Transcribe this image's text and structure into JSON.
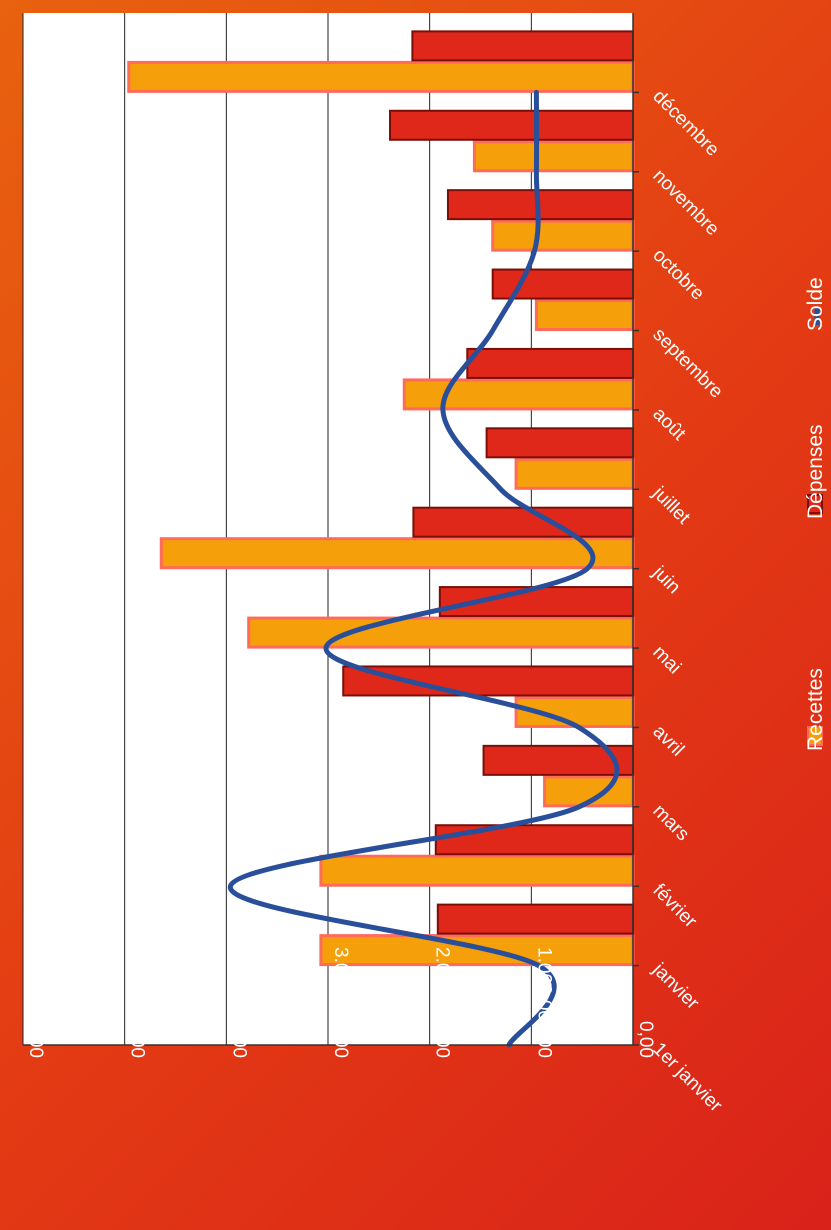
{
  "chart_data": {
    "type": "bar",
    "categories": [
      "1er janvier",
      "janvier",
      "février",
      "mars",
      "avril",
      "mai",
      "juin",
      "juillet",
      "août",
      "septembre",
      "octobre",
      "novembre",
      "décembre"
    ],
    "series": [
      {
        "name": "Recettes",
        "kind": "bar",
        "color": "#f5a00a",
        "border": "#ff6a5a",
        "values": [
          null,
          3070000,
          3070000,
          870000,
          1150000,
          3780000,
          4640000,
          1150000,
          2250000,
          950000,
          1380000,
          1560000,
          4960000
        ]
      },
      {
        "name": "Dépenses",
        "kind": "bar",
        "color": "#e0281a",
        "border": "#7a0e08",
        "values": [
          null,
          1920000,
          1940000,
          1470000,
          2850000,
          1900000,
          2160000,
          1440000,
          1630000,
          1380000,
          1820000,
          2390000,
          2170000
        ]
      },
      {
        "name": "Solde",
        "kind": "line",
        "smooth": true,
        "color": "#2a4f9a",
        "values": [
          1220000,
          930000,
          3960000,
          530000,
          530000,
          3020000,
          450000,
          1300000,
          1870000,
          1380000,
          970000,
          950000,
          950000
        ]
      }
    ],
    "y_ticks": [
      "0,00",
      "1.000.000,00",
      "2.000.000,00",
      "3.000.000,00",
      "4.000.000,00",
      "5.000.000,00",
      "6.000.000,00"
    ],
    "ylim": [
      0,
      6000000
    ],
    "grid": true,
    "legend": "bottom",
    "orientation": "rotated-90-clockwise"
  }
}
